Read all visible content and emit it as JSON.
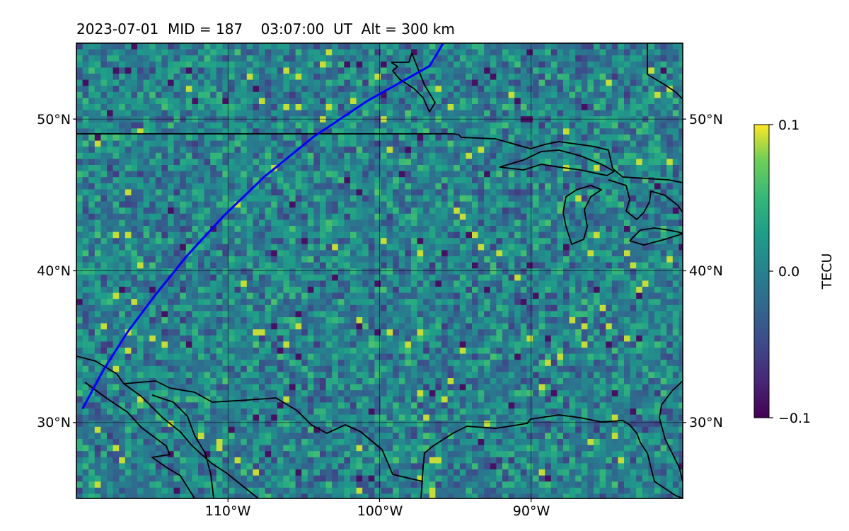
{
  "title": "2023-07-01  MID = 187    03:07:00  UT  Alt = 300 km",
  "map": {
    "lon_range": [
      -120,
      -80
    ],
    "lat_range": [
      25,
      55
    ],
    "x_ticks": [
      {
        "lon": -110,
        "label": "110°W"
      },
      {
        "lon": -100,
        "label": "100°W"
      },
      {
        "lon": -90,
        "label": "90°W"
      }
    ],
    "y_ticks": [
      {
        "lat": 50,
        "label": "50°N"
      },
      {
        "lat": 40,
        "label": "40°N"
      },
      {
        "lat": 30,
        "label": "30°N"
      }
    ],
    "colormap": "viridis",
    "track_color": "#0000ff",
    "track": [
      [
        -119.6,
        30.9
      ],
      [
        -118.2,
        33.5
      ],
      [
        -116.6,
        36.0
      ],
      [
        -114.8,
        38.4
      ],
      [
        -112.7,
        41.0
      ],
      [
        -110.3,
        43.6
      ],
      [
        -107.6,
        46.2
      ],
      [
        -104.4,
        48.8
      ],
      [
        -100.8,
        51.2
      ],
      [
        -96.7,
        53.5
      ],
      [
        -95.8,
        55.0
      ]
    ]
  },
  "colorbar": {
    "label": "TECU",
    "min": -0.1,
    "max": 0.1,
    "ticks": [
      {
        "value": 0.1,
        "label": "0.1"
      },
      {
        "value": 0.0,
        "label": "0.0"
      },
      {
        "value": -0.1,
        "label": "−0.1"
      }
    ]
  }
}
